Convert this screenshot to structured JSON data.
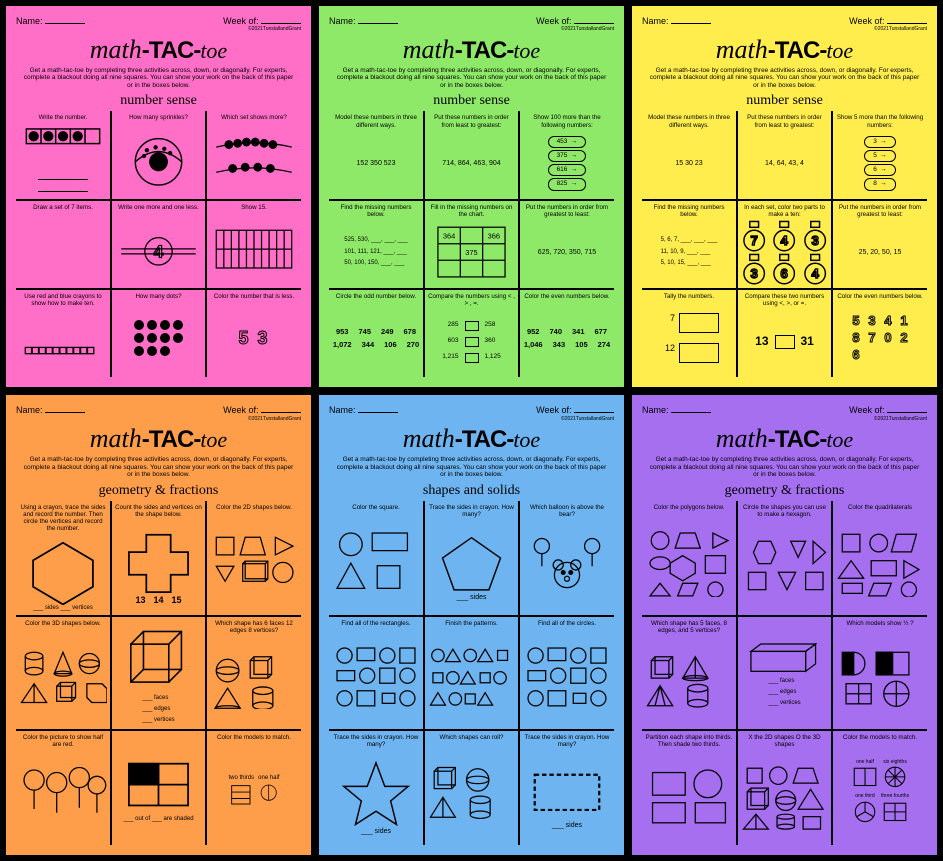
{
  "colors": {
    "pink": "#ff6ec7",
    "green": "#8fe968",
    "yellow": "#ffed4e",
    "orange": "#ff9e4a",
    "blue": "#6db4f0",
    "purple": "#a66ff0"
  },
  "common": {
    "name_label": "Name:",
    "week_label": "Week of:",
    "copyright": "©2021TunstallandGrant",
    "title_math": "math",
    "title_tac": "-TAC-",
    "title_toe": "toe",
    "instructions": "Get a math-tac-toe by completing three activities across, down, or diagonally. For experts, complete a blackout doing all nine squares. You can show your work on the back of this paper or in the boxes below."
  },
  "sheets": [
    {
      "color": "pink",
      "subtitle": "number sense",
      "cells": [
        {
          "t": "Write the number.",
          "kind": "tenframe"
        },
        {
          "t": "How many sprinkles?",
          "kind": "donut"
        },
        {
          "t": "Which set shows more?",
          "kind": "beads"
        },
        {
          "t": "Draw a set of 7 items.",
          "kind": "blank"
        },
        {
          "t": "Write one more and one less.",
          "kind": "onemore",
          "n": "4"
        },
        {
          "t": "Show 15.",
          "kind": "grid10x2"
        },
        {
          "t": "Use red and blue crayons to show how to make ten.",
          "kind": "cubes"
        },
        {
          "t": "How many dots?",
          "kind": "dots"
        },
        {
          "t": "Color the number that is less.",
          "kind": "numout",
          "a": "5",
          "b": "3"
        }
      ]
    },
    {
      "color": "green",
      "subtitle": "number sense",
      "cells": [
        {
          "t": "Model these numbers in three different ways.",
          "kind": "nums",
          "v": "152   350   523"
        },
        {
          "t": "Put these numbers in order from least to greatest:",
          "kind": "nums",
          "v": "714, 864, 463, 904"
        },
        {
          "t": "Show 100 more than the following numbers:",
          "kind": "bubbles",
          "v": [
            "453",
            "375",
            "616",
            "825"
          ]
        },
        {
          "t": "Find the missing numbers below.",
          "kind": "seq",
          "v": [
            "525, 530, ___, ___, ___",
            "101, 111, 121, ___, ___",
            "50, 100, 150, ___, ___"
          ]
        },
        {
          "t": "Fill in the missing numbers on the chart.",
          "kind": "chart",
          "v": [
            "364",
            "",
            "366",
            "",
            "375",
            "",
            "",
            "",
            ""
          ]
        },
        {
          "t": "Put the numbers in order from greatest to least:",
          "kind": "nums",
          "v": "625, 720, 350, 715"
        },
        {
          "t": "Circle the odd number below.",
          "kind": "numgrid",
          "v": [
            "953",
            "",
            "745",
            "",
            "249",
            "",
            "",
            "678",
            "",
            "1,072",
            "344",
            "106",
            "",
            "270"
          ]
        },
        {
          "t": "Compare the numbers using < , > , =.",
          "kind": "compare",
          "v": [
            [
              "285",
              "258"
            ],
            [
              "603",
              "360"
            ],
            [
              "1,215",
              "1,125"
            ]
          ]
        },
        {
          "t": "Color the even numbers below.",
          "kind": "numgrid",
          "v": [
            "952",
            "",
            "740",
            "",
            "341",
            "",
            "",
            "677",
            "",
            "1,046",
            "343",
            "105",
            "",
            "274"
          ]
        }
      ]
    },
    {
      "color": "yellow",
      "subtitle": "number sense",
      "cells": [
        {
          "t": "Model these numbers in three different ways.",
          "kind": "nums",
          "v": "15     30     23"
        },
        {
          "t": "Put these numbers in order from least to greatest:",
          "kind": "nums",
          "v": "14, 64, 43, 4"
        },
        {
          "t": "Show 5 more than the following numbers:",
          "kind": "bubbles",
          "v": [
            "3",
            "5",
            "6",
            "8"
          ]
        },
        {
          "t": "Find the missing numbers below.",
          "kind": "seq",
          "v": [
            "5, 6, 7, ___, ___, ___",
            "11, 10, 9, ___, ___",
            "5, 10, 15, ___, ___"
          ]
        },
        {
          "t": "In each set, color two parts to make a ten:",
          "kind": "numpairs",
          "v": [
            [
              "7",
              "4",
              "3"
            ],
            [
              "3",
              "6",
              "4"
            ]
          ]
        },
        {
          "t": "Put the numbers in order from greatest to least:",
          "kind": "nums",
          "v": "25, 20, 50, 15"
        },
        {
          "t": "Tally the numbers.",
          "kind": "tally",
          "v": [
            "7",
            "12"
          ]
        },
        {
          "t": "Compare these two numbers using <, >, or =.",
          "kind": "compare1",
          "v": [
            "13",
            "31"
          ]
        },
        {
          "t": "Color the even numbers below.",
          "kind": "numout6",
          "v": [
            "5",
            "3",
            "4",
            "1",
            "8",
            "7",
            "0",
            "2",
            "6"
          ]
        }
      ]
    },
    {
      "color": "orange",
      "subtitle": "geometry & fractions",
      "cells": [
        {
          "t": "Using a crayon, trace the sides and record the number. Then circle the vertices and record the number.",
          "kind": "hex",
          "labels": [
            "___ sides",
            "___ vertices"
          ]
        },
        {
          "t": "Count the sides and vertices on the shape below.",
          "kind": "cross",
          "v": [
            "13",
            "14",
            "15"
          ]
        },
        {
          "t": "Color the 2D shapes below.",
          "kind": "shapes2d3d"
        },
        {
          "t": "Color the 3D shapes below.",
          "kind": "shapes3d"
        },
        {
          "t": "",
          "kind": "cube",
          "labels": [
            "___ faces",
            "___ edges",
            "___ vertices"
          ]
        },
        {
          "t": "Which shape has 6 faces 12 edges 8 vertices?",
          "kind": "solids4"
        },
        {
          "t": "Color the picture to show half are red.",
          "kind": "balloons"
        },
        {
          "t": "",
          "kind": "fracshade",
          "label": "___ out of ___ are shaded"
        },
        {
          "t": "Color the models to match.",
          "kind": "fracmatch",
          "v": [
            "two thirds",
            "one half"
          ]
        }
      ]
    },
    {
      "color": "blue",
      "subtitle": "shapes and solids",
      "cells": [
        {
          "t": "Color the square.",
          "kind": "basicshapes"
        },
        {
          "t": "Trace the sides in crayon. How many?",
          "kind": "pentagon",
          "label": "___ sides"
        },
        {
          "t": "Which balloon is above the bear?",
          "kind": "bear"
        },
        {
          "t": "Find all of the rectangles.",
          "kind": "objects"
        },
        {
          "t": "Finish the patterns.",
          "kind": "patterns"
        },
        {
          "t": "Find all of the circles.",
          "kind": "objects"
        },
        {
          "t": "Trace the sides in crayon. How many?",
          "kind": "star",
          "label": "___ sides"
        },
        {
          "t": "Which shapes can roll?",
          "kind": "solids4b"
        },
        {
          "t": "Trace the sides in crayon. How many?",
          "kind": "rect",
          "label": "___ sides"
        }
      ]
    },
    {
      "color": "purple",
      "subtitle": "geometry & fractions",
      "cells": [
        {
          "t": "Color the polygons below.",
          "kind": "polymix"
        },
        {
          "t": "Circle the shapes you can use to make a hexagon.",
          "kind": "hexparts"
        },
        {
          "t": "Color the quadrilaterals",
          "kind": "quads"
        },
        {
          "t": "Which shape has 5 faces, 8 edges, and 5 vertices?",
          "kind": "solids4c"
        },
        {
          "t": "",
          "kind": "rectprism",
          "labels": [
            "___ faces",
            "___ edges",
            "___ vertices"
          ]
        },
        {
          "t": "Which models show ½ ?",
          "kind": "halfmodels"
        },
        {
          "t": "Partition each shape into thirds. Then shade two thirds.",
          "kind": "partition"
        },
        {
          "t": "X the 2D shapes O the 3D shapes",
          "kind": "shapes2d3db"
        },
        {
          "t": "Color the models to match.",
          "kind": "fracmatch2",
          "v": [
            "one half",
            "six eighths",
            "one third",
            "three fourths"
          ]
        }
      ]
    }
  ]
}
